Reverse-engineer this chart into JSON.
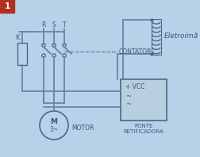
{
  "bg_color": "#b8d0e8",
  "header_color": "#b03020",
  "header_text": "1",
  "header_text_color": "#ffffff",
  "diagram_bg": "#adc8e0",
  "line_color": "#6080a0",
  "dark_line_color": "#4a6888",
  "text_color": "#3a5878",
  "label_R": "R",
  "label_S": "S",
  "label_T": "T",
  "label_K": "K",
  "label_contator": "CONTATOR",
  "label_eletroima": "Eletroímã",
  "label_VCC": "+ VCC",
  "label_tilde1": "~",
  "label_tilde2": "~",
  "label_ponte": "PONTE",
  "label_retificadora": "RETIFICADORA",
  "label_motor": "MOTOR",
  "label_M": "M",
  "label_3tilde": "3~",
  "figw": 2.53,
  "figh": 1.98,
  "dpi": 100
}
